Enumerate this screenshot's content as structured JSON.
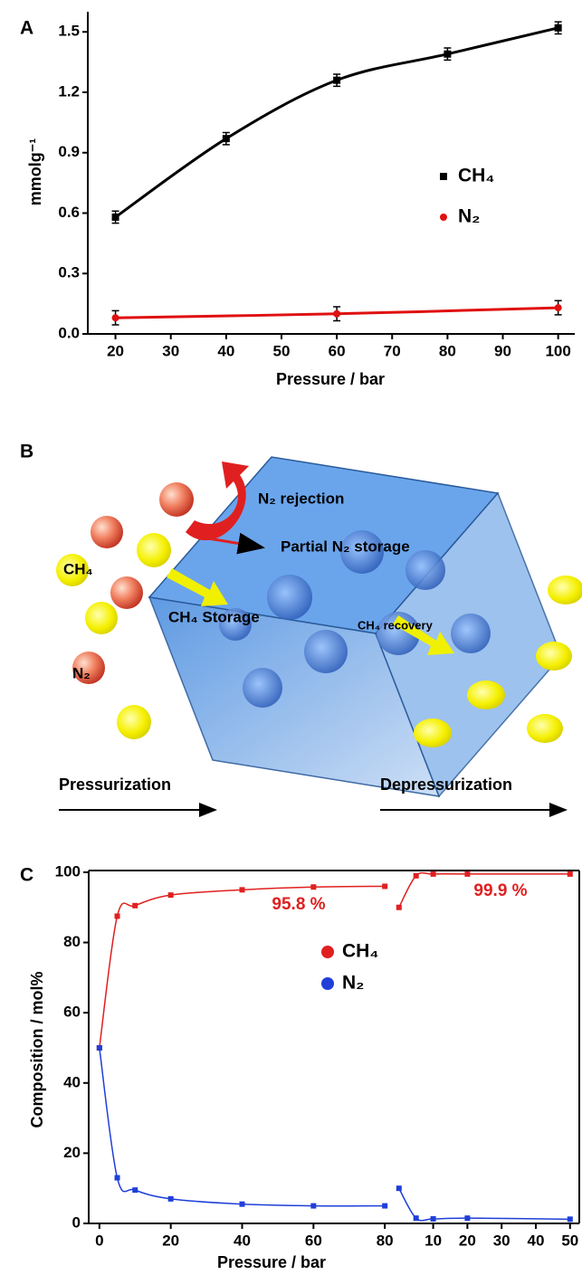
{
  "chart_data": [
    {
      "type": "scatter",
      "label": "A",
      "xlabel": "Pressure / bar",
      "ylabel": "mmolg⁻¹",
      "xlim": [
        15,
        103
      ],
      "ylim": [
        0,
        1.6
      ],
      "xticks": [
        20,
        30,
        40,
        50,
        60,
        70,
        80,
        90,
        100
      ],
      "yticks": [
        {
          "value": 0,
          "label": "0.0"
        },
        0.3,
        0.6,
        0.9,
        1.2,
        1.5
      ],
      "series": [
        {
          "name": "CH₄",
          "color": "#000000",
          "marker": "square",
          "x": [
            20,
            40,
            60,
            80,
            100
          ],
          "values": [
            0.58,
            0.97,
            1.26,
            1.39,
            1.52
          ],
          "errors": [
            0.03,
            0.03,
            0.03,
            0.03,
            0.03
          ]
        },
        {
          "name": "N₂",
          "color": "#e01010",
          "marker": "circle",
          "x": [
            20,
            60,
            100
          ],
          "values": [
            0.08,
            0.1,
            0.13
          ],
          "errors": [
            0.035,
            0.035,
            0.035
          ]
        }
      ]
    },
    {
      "type": "line",
      "label": "C",
      "xlabel": "Pressure / bar",
      "ylabel": "Composition / mol%",
      "xlim": [
        -3,
        83
      ],
      "ylim": [
        0,
        100.5
      ],
      "xticks": [
        0,
        20,
        40,
        60,
        80
      ],
      "yticks": [
        0,
        20,
        40,
        60,
        80,
        100
      ],
      "annotations": [
        "95.8 %"
      ],
      "series": [
        {
          "name": "CH₄",
          "color": "#e02020",
          "marker": "square",
          "x": [
            0,
            5,
            10,
            20,
            40,
            60,
            80
          ],
          "values": [
            50,
            87.5,
            90.5,
            93.5,
            95,
            95.8,
            96
          ]
        },
        {
          "name": "N₂",
          "color": "#1f3fd8",
          "marker": "square",
          "x": [
            0,
            5,
            10,
            20,
            40,
            60,
            80
          ],
          "values": [
            50,
            13,
            9.5,
            7,
            5.5,
            5,
            5
          ]
        }
      ]
    },
    {
      "type": "line",
      "xlim": [
        -1,
        52.7
      ],
      "ylim": [
        0,
        100.5
      ],
      "xticks": [
        10,
        20,
        30,
        40,
        50
      ],
      "annotations": [
        "99.9 %"
      ],
      "series": [
        {
          "color": "#e02020",
          "marker": "square",
          "x": [
            0,
            5,
            10,
            20,
            50
          ],
          "values": [
            90,
            99,
            99.5,
            99.5,
            99.5
          ]
        },
        {
          "color": "#1f3fd8",
          "marker": "square",
          "x": [
            0,
            5,
            10,
            20,
            50
          ],
          "values": [
            10,
            1.5,
            1.3,
            1.5,
            1.2
          ]
        }
      ]
    }
  ],
  "diagram": {
    "label": "B",
    "n2_rejection": "N₂ rejection",
    "ch4": "CH₄",
    "partial_n2_storage": "Partial N₂ storage",
    "ch4_storage": "CH₄ Storage",
    "ch4_recovery": "CH₄ recovery",
    "n2": "N₂",
    "pressurization": "Pressurization",
    "depressurization": "Depressurization"
  }
}
